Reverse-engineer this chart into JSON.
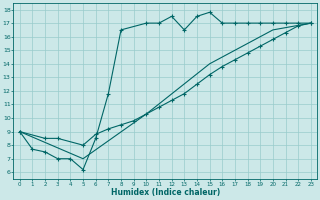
{
  "xlabel": "Humidex (Indice chaleur)",
  "bg_color": "#cce8e8",
  "line_color": "#006666",
  "grid_color": "#99cccc",
  "xlim": [
    -0.5,
    23.5
  ],
  "ylim": [
    5.5,
    18.5
  ],
  "xticks": [
    0,
    1,
    2,
    3,
    4,
    5,
    6,
    7,
    8,
    9,
    10,
    11,
    12,
    13,
    14,
    15,
    16,
    17,
    18,
    19,
    20,
    21,
    22,
    23
  ],
  "yticks": [
    6,
    7,
    8,
    9,
    10,
    11,
    12,
    13,
    14,
    15,
    16,
    17,
    18
  ],
  "series1_x": [
    0,
    1,
    2,
    3,
    4,
    5,
    6,
    7,
    8,
    10,
    11,
    12,
    13,
    14,
    15,
    16,
    17,
    18,
    19,
    20,
    21,
    22,
    23
  ],
  "series1_y": [
    9,
    7.7,
    7.5,
    7.0,
    7.0,
    6.2,
    8.5,
    11.8,
    16.5,
    17.0,
    17.0,
    17.5,
    16.5,
    17.5,
    17.8,
    17.0,
    17.0,
    17.0,
    17.0,
    17.0,
    17.0,
    17.0,
    17.0
  ],
  "series2_x": [
    0,
    2,
    3,
    5,
    6,
    7,
    8,
    9,
    10,
    11,
    12,
    13,
    14,
    15,
    16,
    17,
    18,
    19,
    20,
    21,
    22,
    23
  ],
  "series2_y": [
    9,
    8.5,
    8.5,
    8.0,
    8.8,
    9.2,
    9.5,
    9.8,
    10.3,
    10.8,
    11.3,
    11.8,
    12.5,
    13.2,
    13.8,
    14.3,
    14.8,
    15.3,
    15.8,
    16.3,
    16.8,
    17.0
  ],
  "series3_x": [
    0,
    5,
    10,
    15,
    20,
    23
  ],
  "series3_y": [
    9,
    7.0,
    10.3,
    14.0,
    16.5,
    17.0
  ]
}
